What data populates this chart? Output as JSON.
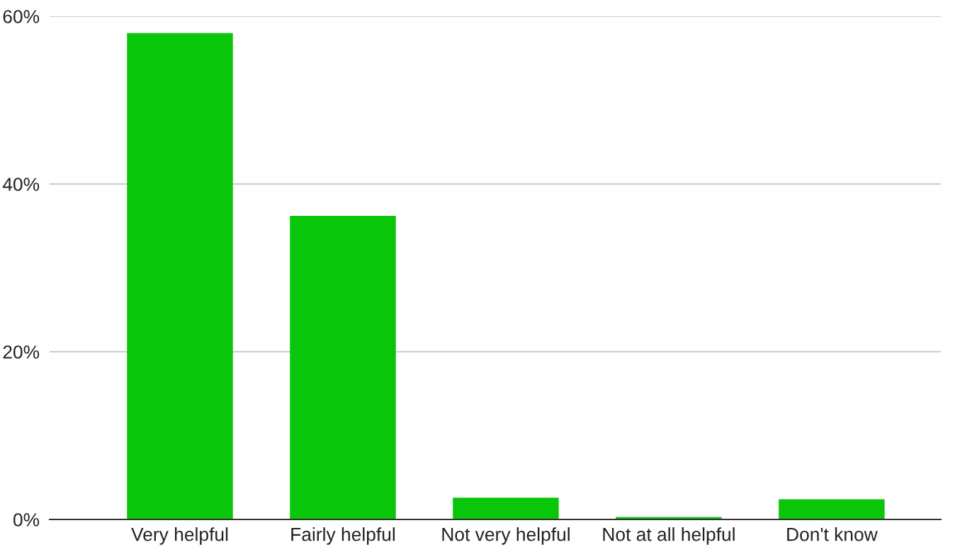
{
  "chart_data": {
    "type": "bar",
    "categories": [
      "Very helpful",
      "Fairly helpful",
      "Not very helpful",
      "Not at all helpful",
      "Don't know"
    ],
    "values": [
      58,
      36.2,
      2.6,
      0.3,
      2.4
    ],
    "color": "#0ac60a",
    "ylim": [
      0,
      60
    ],
    "yticks": [
      {
        "value": 0,
        "label": "0%"
      },
      {
        "value": 20,
        "label": "20%"
      },
      {
        "value": 40,
        "label": "40%"
      },
      {
        "value": 60,
        "label": "60%"
      }
    ],
    "grid": "y"
  }
}
